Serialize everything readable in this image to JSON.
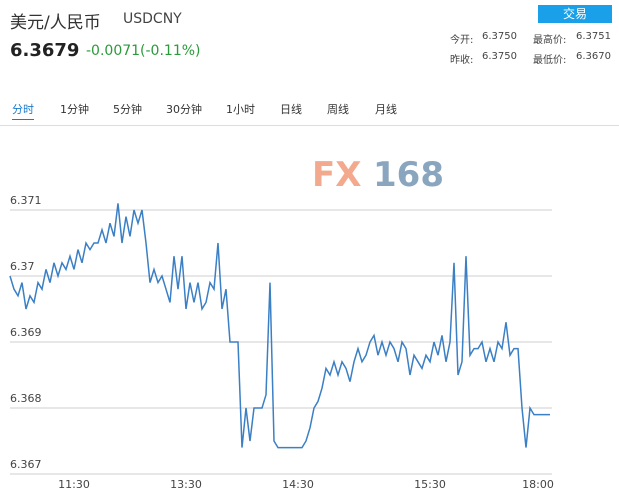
{
  "header": {
    "name": "美元/人民币",
    "symbol": "USDCNY",
    "price": "6.3679",
    "change": "-0.0071(-0.11%)",
    "button": "交易",
    "stats": [
      [
        "今开:",
        "6.3750"
      ],
      [
        "最高价:",
        "6.3751"
      ],
      [
        "昨收:",
        "6.3750"
      ],
      [
        "最低价:",
        "6.3670"
      ]
    ]
  },
  "tabs": [
    "分时",
    "1分钟",
    "5分钟",
    "30分钟",
    "1小时",
    "日线",
    "周线",
    "月线"
  ],
  "chart_data": {
    "type": "line",
    "watermark": [
      "FX",
      "168"
    ],
    "color": "#3b7fc4",
    "grid": true,
    "ylim": [
      6.367,
      6.372
    ],
    "yticks": [
      6.367,
      6.368,
      6.369,
      6.37,
      6.371
    ],
    "categories": [
      null,
      null,
      null,
      null,
      null,
      null,
      null,
      null,
      null,
      null,
      null,
      null,
      null,
      null,
      null,
      null,
      "11:30",
      null,
      null,
      null,
      null,
      null,
      null,
      null,
      null,
      null,
      null,
      null,
      null,
      null,
      null,
      null,
      null,
      null,
      null,
      null,
      null,
      null,
      null,
      null,
      null,
      null,
      null,
      null,
      "13:30",
      null,
      null,
      null,
      null,
      null,
      null,
      null,
      null,
      null,
      null,
      null,
      null,
      null,
      null,
      null,
      null,
      null,
      null,
      null,
      null,
      null,
      null,
      null,
      null,
      null,
      null,
      null,
      "14:30",
      null,
      null,
      null,
      null,
      null,
      null,
      null,
      null,
      null,
      null,
      null,
      null,
      null,
      null,
      null,
      null,
      null,
      null,
      null,
      null,
      null,
      null,
      null,
      null,
      null,
      null,
      null,
      null,
      null,
      null,
      null,
      null,
      "15:30",
      null,
      null,
      null,
      null,
      null,
      null,
      null,
      null,
      null,
      null,
      null,
      null,
      null,
      null,
      null,
      null,
      null,
      null,
      null,
      null,
      null,
      null,
      null,
      null,
      null,
      null,
      "18:00",
      null,
      null,
      null
    ],
    "values": [
      6.37,
      6.3698,
      6.3697,
      6.3699,
      6.3695,
      6.3697,
      6.3696,
      6.3699,
      6.3698,
      6.3701,
      6.3699,
      6.3702,
      6.37,
      6.3702,
      6.3701,
      6.3703,
      6.3701,
      6.3704,
      6.3702,
      6.3705,
      6.3704,
      6.3705,
      6.3705,
      6.3707,
      6.3705,
      6.3708,
      6.3706,
      6.3711,
      6.3705,
      6.3709,
      6.3706,
      6.371,
      6.3708,
      6.371,
      6.3705,
      6.3699,
      6.3701,
      6.3699,
      6.37,
      6.3698,
      6.3696,
      6.3703,
      6.3698,
      6.3703,
      6.3695,
      6.3699,
      6.3696,
      6.3699,
      6.3695,
      6.3696,
      6.3699,
      6.3698,
      6.3705,
      6.3695,
      6.3698,
      6.369,
      6.369,
      6.369,
      6.3674,
      6.368,
      6.3675,
      6.368,
      6.368,
      6.368,
      6.3682,
      6.3699,
      6.3675,
      6.3674,
      6.3674,
      6.3674,
      6.3674,
      6.3674,
      6.3674,
      6.3674,
      6.3675,
      6.3677,
      6.368,
      6.3681,
      6.3683,
      6.3686,
      6.3685,
      6.3687,
      6.3685,
      6.3687,
      6.3686,
      6.3684,
      6.3687,
      6.3689,
      6.3687,
      6.3688,
      6.369,
      6.3691,
      6.3688,
      6.369,
      6.3688,
      6.369,
      6.3689,
      6.3687,
      6.369,
      6.3689,
      6.3685,
      6.3688,
      6.3687,
      6.3686,
      6.3688,
      6.3687,
      6.369,
      6.3688,
      6.3691,
      6.3687,
      6.369,
      6.3702,
      6.3685,
      6.3687,
      6.3703,
      6.3688,
      6.3689,
      6.3689,
      6.369,
      6.3687,
      6.3689,
      6.3687,
      6.369,
      6.3689,
      6.3693,
      6.3688,
      6.3689,
      6.3689,
      6.368,
      6.3674,
      6.368,
      6.3679,
      6.3679,
      6.3679,
      6.3679,
      6.3679
    ]
  }
}
